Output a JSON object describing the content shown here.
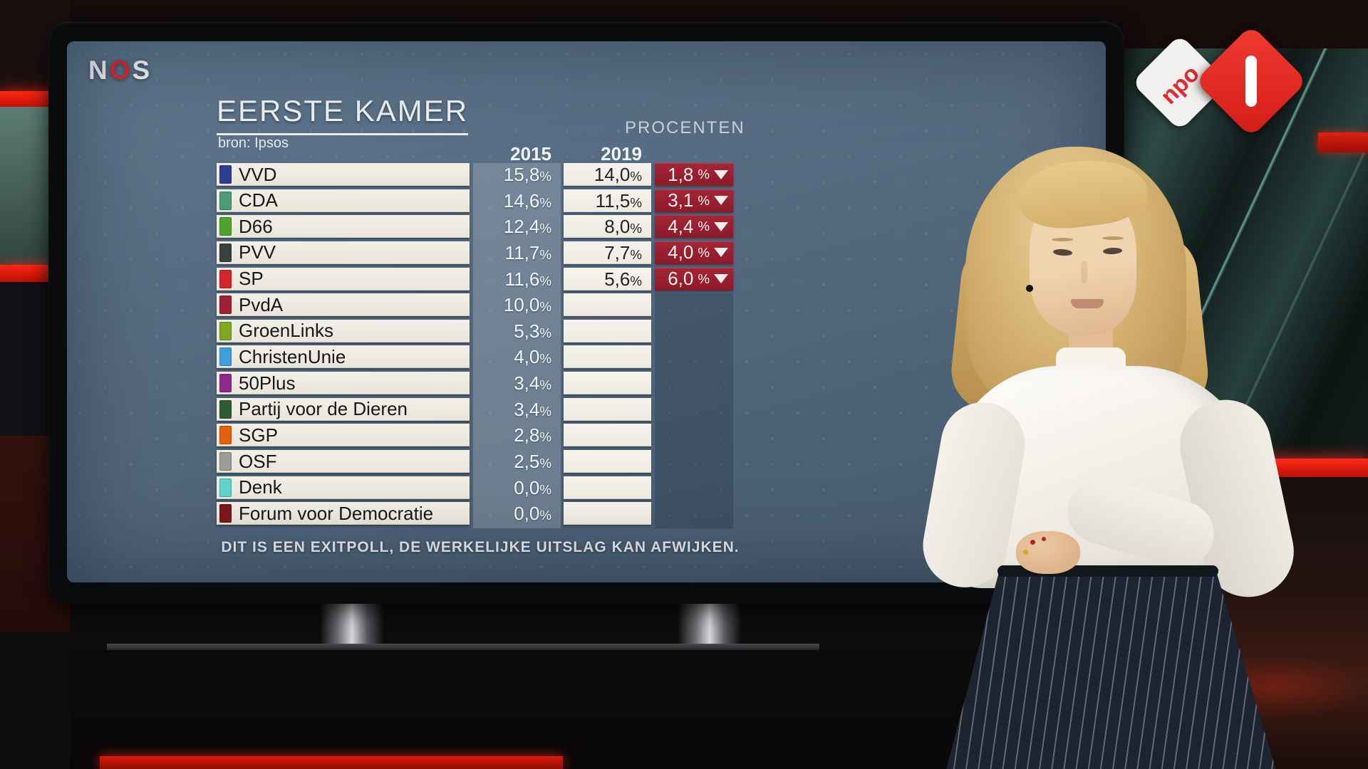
{
  "channel": {
    "nos_n": "N",
    "nos_o": "O",
    "nos_s": "S"
  },
  "npo_logo": {
    "text": "npo",
    "channel_number": "1"
  },
  "board": {
    "title": "EERSTE KAMER",
    "source": "bron: Ipsos",
    "unit_label": "PROCENTEN",
    "disclaimer": "DIT IS EEN EXITPOLL, DE WERKELIJKE UITSLAG KAN AFWIJKEN.",
    "percent_sign": "%"
  },
  "chart_data": {
    "type": "table",
    "title": "EERSTE KAMER",
    "source": "bron: Ipsos",
    "unit": "PROCENTEN",
    "columns": [
      "2015",
      "2019"
    ],
    "change_direction_symbol": "▼",
    "rows": [
      {
        "party": "VVD",
        "color": "#2f3c8f",
        "pct_2015": "15,8",
        "pct_2019": "14,0",
        "change": "1,8",
        "direction": "down"
      },
      {
        "party": "CDA",
        "color": "#4c9a78",
        "pct_2015": "14,6",
        "pct_2019": "11,5",
        "change": "3,1",
        "direction": "down"
      },
      {
        "party": "D66",
        "color": "#4ea22e",
        "pct_2015": "12,4",
        "pct_2019": "8,0",
        "change": "4,4",
        "direction": "down"
      },
      {
        "party": "PVV",
        "color": "#37423e",
        "pct_2015": "11,7",
        "pct_2019": "7,7",
        "change": "4,0",
        "direction": "down"
      },
      {
        "party": "SP",
        "color": "#d6242b",
        "pct_2015": "11,6",
        "pct_2019": "5,6",
        "change": "6,0",
        "direction": "down"
      },
      {
        "party": "PvdA",
        "color": "#a02036",
        "pct_2015": "10,0",
        "pct_2019": null,
        "change": null,
        "direction": null
      },
      {
        "party": "GroenLinks",
        "color": "#7fa71f",
        "pct_2015": "5,3",
        "pct_2019": null,
        "change": null,
        "direction": null
      },
      {
        "party": "ChristenUnie",
        "color": "#3f9fd8",
        "pct_2015": "4,0",
        "pct_2019": null,
        "change": null,
        "direction": null
      },
      {
        "party": "50Plus",
        "color": "#8f2a8a",
        "pct_2015": "3,4",
        "pct_2019": null,
        "change": null,
        "direction": null
      },
      {
        "party": "Partij voor de Dieren",
        "color": "#2d5c33",
        "pct_2015": "3,4",
        "pct_2019": null,
        "change": null,
        "direction": null
      },
      {
        "party": "SGP",
        "color": "#e45f0e",
        "pct_2015": "2,8",
        "pct_2019": null,
        "change": null,
        "direction": null
      },
      {
        "party": "OSF",
        "color": "#9b9b97",
        "pct_2015": "2,5",
        "pct_2019": null,
        "change": null,
        "direction": null
      },
      {
        "party": "Denk",
        "color": "#62d2cd",
        "pct_2015": "0,0",
        "pct_2019": null,
        "change": null,
        "direction": null
      },
      {
        "party": "Forum voor Democratie",
        "color": "#7c181b",
        "pct_2015": "0,0",
        "pct_2019": null,
        "change": null,
        "direction": null
      }
    ]
  },
  "colors": {
    "board_bg_top": "#5f778d",
    "board_bg_bottom": "#465a6e",
    "delta_box": "#9b2030",
    "accent_red": "#e3282e",
    "row_bg": "#eeeae0"
  }
}
